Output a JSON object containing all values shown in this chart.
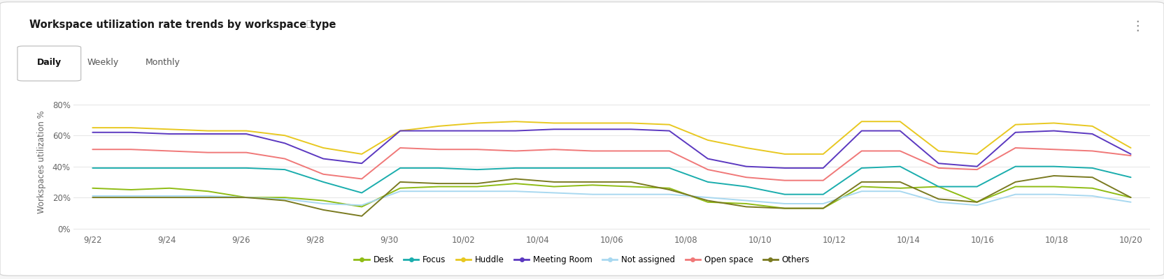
{
  "title": "Workspace utilization rate trends by workspace type",
  "ylabel": "Workspaces utilization %",
  "background_color": "#f5f5f5",
  "card_color": "#ffffff",
  "plot_bg_color": "#ffffff",
  "grid_color": "#e8e8e8",
  "x_labels": [
    "9/22",
    "9/24",
    "9/26",
    "9/28",
    "9/30",
    "10/02",
    "10/04",
    "10/06",
    "10/08",
    "10/10",
    "10/12",
    "10/14",
    "10/16",
    "10/18",
    "10/20"
  ],
  "yticks": [
    0,
    20,
    40,
    60,
    80
  ],
  "ylim": [
    -2,
    88
  ],
  "series": {
    "Desk": {
      "color": "#8fbc14",
      "data": [
        26,
        25,
        26,
        24,
        20,
        20,
        18,
        14,
        26,
        27,
        27,
        29,
        27,
        28,
        27,
        26,
        17,
        16,
        13,
        13,
        27,
        26,
        27,
        17,
        27,
        27,
        26,
        20
      ]
    },
    "Focus": {
      "color": "#1aadad",
      "data": [
        39,
        39,
        39,
        39,
        39,
        38,
        30,
        23,
        39,
        39,
        38,
        39,
        39,
        39,
        39,
        39,
        30,
        27,
        22,
        22,
        39,
        40,
        27,
        27,
        40,
        40,
        39,
        33
      ]
    },
    "Huddle": {
      "color": "#e8c820",
      "data": [
        65,
        65,
        64,
        63,
        63,
        60,
        52,
        48,
        63,
        66,
        68,
        69,
        68,
        68,
        68,
        67,
        57,
        52,
        48,
        48,
        69,
        69,
        50,
        48,
        67,
        68,
        66,
        52
      ]
    },
    "Meeting Room": {
      "color": "#5b38c0",
      "data": [
        62,
        62,
        61,
        61,
        61,
        55,
        45,
        42,
        63,
        63,
        63,
        63,
        64,
        64,
        64,
        63,
        45,
        40,
        39,
        39,
        63,
        63,
        42,
        40,
        62,
        63,
        61,
        48
      ]
    },
    "Not assigned": {
      "color": "#a8d8f0",
      "data": [
        21,
        21,
        21,
        21,
        20,
        19,
        16,
        15,
        24,
        24,
        24,
        24,
        23,
        22,
        22,
        22,
        20,
        18,
        16,
        16,
        24,
        24,
        17,
        15,
        22,
        22,
        21,
        17
      ]
    },
    "Open space": {
      "color": "#f07878",
      "data": [
        51,
        51,
        50,
        49,
        49,
        45,
        35,
        32,
        52,
        51,
        51,
        50,
        51,
        50,
        50,
        50,
        38,
        33,
        31,
        31,
        50,
        50,
        39,
        38,
        52,
        51,
        50,
        47
      ]
    },
    "Others": {
      "color": "#7a7a20",
      "data": [
        20,
        20,
        20,
        20,
        20,
        18,
        12,
        8,
        30,
        29,
        29,
        32,
        30,
        30,
        30,
        25,
        18,
        14,
        13,
        13,
        30,
        30,
        19,
        17,
        30,
        34,
        33,
        20
      ]
    }
  },
  "legend_order": [
    "Desk",
    "Focus",
    "Huddle",
    "Meeting Room",
    "Not assigned",
    "Open space",
    "Others"
  ],
  "tab_labels": [
    "Daily",
    "Weekly",
    "Monthly"
  ],
  "active_tab": "Daily"
}
